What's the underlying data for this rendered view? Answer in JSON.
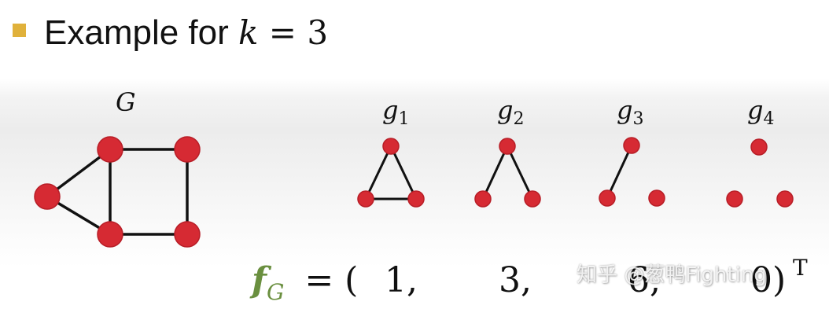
{
  "title": {
    "prefix": "Example for ",
    "variable": "k",
    "equals": " = 3"
  },
  "colors": {
    "node": "#d62a33",
    "node_stroke": "#b81e27",
    "edge": "#111111",
    "bullet": "#e0b13b",
    "vector_symbol": "#6a8f3f"
  },
  "main_graph": {
    "label": "G"
  },
  "graphlets": [
    {
      "label": "g",
      "index": "1"
    },
    {
      "label": "g",
      "index": "2"
    },
    {
      "label": "g",
      "index": "3"
    },
    {
      "label": "g",
      "index": "4"
    }
  ],
  "vector": {
    "symbol": "f",
    "subscript": "G",
    "equals": "= (",
    "values": [
      "1,",
      "3,",
      "6,",
      "0)"
    ],
    "transpose": "T"
  },
  "watermark": "知乎 @葱鸭Fighting"
}
